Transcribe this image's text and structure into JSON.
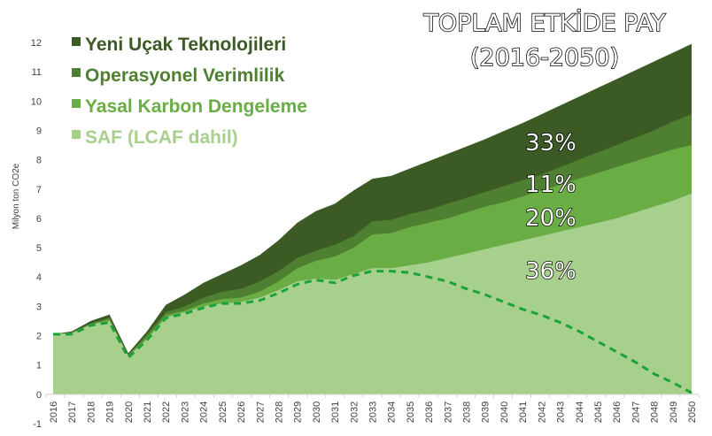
{
  "chart_data": {
    "type": "area",
    "title_lines": [
      "TOPLAM ETKİDE PAY",
      "(2016-2050)"
    ],
    "ylabel": "Milyon ton CO2e",
    "ylim": [
      -1,
      12
    ],
    "yticks": [
      -1,
      0,
      1,
      2,
      3,
      4,
      5,
      6,
      7,
      8,
      9,
      10,
      11,
      12
    ],
    "grid": false,
    "legend_position": "top-left",
    "x": [
      "2016",
      "2017",
      "2018",
      "2019",
      "2020",
      "2021",
      "2022",
      "2023",
      "2024",
      "2025",
      "2026",
      "2027",
      "2028",
      "2029",
      "2030",
      "2031",
      "2032",
      "2033",
      "2034",
      "2035",
      "2036",
      "2037",
      "2038",
      "2039",
      "2040",
      "2041",
      "2042",
      "2043",
      "2044",
      "2045",
      "2046",
      "2047",
      "2048",
      "2049",
      "2050"
    ],
    "total": [
      2.05,
      2.15,
      2.5,
      2.72,
      1.4,
      2.15,
      3.05,
      3.4,
      3.8,
      4.1,
      4.4,
      4.75,
      5.25,
      5.85,
      6.25,
      6.5,
      6.95,
      7.35,
      7.45,
      7.7,
      7.95,
      8.2,
      8.45,
      8.7,
      8.98,
      9.25,
      9.55,
      9.85,
      10.15,
      10.45,
      10.75,
      11.05,
      11.35,
      11.65,
      11.95
    ],
    "series": [
      {
        "name": "Yeni Uçak Teknolojileri",
        "color": "#3b5a24",
        "share_label": "33%",
        "cumulative_top": [
          2.05,
          2.15,
          2.5,
          2.72,
          1.4,
          2.15,
          3.05,
          3.4,
          3.8,
          4.1,
          4.4,
          4.75,
          5.25,
          5.85,
          6.25,
          6.5,
          6.95,
          7.35,
          7.45,
          7.7,
          7.95,
          8.2,
          8.45,
          8.7,
          8.98,
          9.25,
          9.55,
          9.85,
          10.15,
          10.45,
          10.75,
          11.05,
          11.35,
          11.65,
          11.95
        ]
      },
      {
        "name": "Operasyonel Verimlilik",
        "color": "#4f7f30",
        "share_label": "11%",
        "cumulative_top": [
          2.05,
          2.12,
          2.42,
          2.62,
          1.35,
          2.05,
          2.8,
          3.0,
          3.3,
          3.5,
          3.6,
          3.85,
          4.2,
          4.65,
          4.9,
          5.1,
          5.4,
          5.9,
          5.95,
          6.15,
          6.3,
          6.5,
          6.7,
          6.9,
          7.1,
          7.3,
          7.5,
          7.75,
          8.0,
          8.25,
          8.5,
          8.75,
          9.0,
          9.3,
          9.55
        ]
      },
      {
        "name": "Yasal Karbon Dengeleme",
        "color": "#6aad45",
        "share_label": "20%",
        "cumulative_top": [
          2.05,
          2.1,
          2.4,
          2.55,
          1.33,
          1.95,
          2.7,
          2.85,
          3.1,
          3.25,
          3.3,
          3.5,
          3.85,
          4.3,
          4.55,
          4.7,
          5.0,
          5.45,
          5.5,
          5.7,
          5.85,
          6.0,
          6.2,
          6.4,
          6.55,
          6.75,
          6.95,
          7.15,
          7.35,
          7.55,
          7.75,
          7.95,
          8.15,
          8.35,
          8.5
        ]
      },
      {
        "name": "SAF (LCAF dahil)",
        "color": "#a8d08d",
        "share_label": "36%",
        "cumulative_top": [
          2.05,
          2.08,
          2.38,
          2.5,
          1.3,
          1.88,
          2.62,
          2.8,
          3.0,
          3.1,
          3.15,
          3.3,
          3.55,
          3.85,
          3.95,
          3.9,
          4.1,
          4.3,
          4.3,
          4.4,
          4.5,
          4.65,
          4.8,
          4.95,
          5.1,
          5.25,
          5.4,
          5.55,
          5.7,
          5.85,
          6.0,
          6.2,
          6.4,
          6.6,
          6.85
        ]
      }
    ],
    "baseline": {
      "style": "dashed",
      "color": "#1aa33a",
      "values": [
        2.05,
        2.05,
        2.35,
        2.45,
        1.25,
        1.85,
        2.6,
        2.75,
        2.95,
        3.1,
        3.1,
        3.2,
        3.45,
        3.75,
        3.9,
        3.8,
        4.05,
        4.2,
        4.2,
        4.15,
        4.0,
        3.85,
        3.6,
        3.4,
        3.15,
        2.9,
        2.7,
        2.45,
        2.15,
        1.8,
        1.45,
        1.1,
        0.7,
        0.4,
        0.05
      ]
    }
  }
}
